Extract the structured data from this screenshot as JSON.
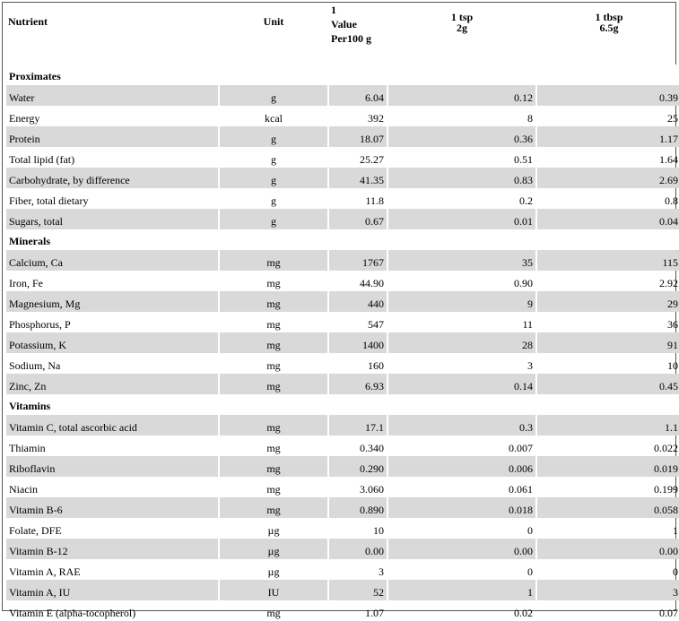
{
  "headers": {
    "nutrient": "Nutrient",
    "unit": "Unit",
    "value_line1": "1",
    "value_line2": "Value",
    "value_line3": "Per100 g",
    "tsp_line1": "1 tsp",
    "tsp_line2": "2g",
    "tbsp_line1": "1 tbsp",
    "tbsp_line2": "6.5g"
  },
  "groups": [
    {
      "title": "Proximates",
      "rows": [
        {
          "name": "Water",
          "unit": "g",
          "per100": "6.04",
          "tsp": "0.12",
          "tbsp": "0.39"
        },
        {
          "name": "Energy",
          "unit": "kcal",
          "per100": "392",
          "tsp": "8",
          "tbsp": "25"
        },
        {
          "name": "Protein",
          "unit": "g",
          "per100": "18.07",
          "tsp": "0.36",
          "tbsp": "1.17"
        },
        {
          "name": "Total lipid (fat)",
          "unit": "g",
          "per100": "25.27",
          "tsp": "0.51",
          "tbsp": "1.64"
        },
        {
          "name": "Carbohydrate, by difference",
          "unit": "g",
          "per100": "41.35",
          "tsp": "0.83",
          "tbsp": "2.69"
        },
        {
          "name": "Fiber, total dietary",
          "unit": "g",
          "per100": "11.8",
          "tsp": "0.2",
          "tbsp": "0.8"
        },
        {
          "name": "Sugars, total",
          "unit": "g",
          "per100": "0.67",
          "tsp": "0.01",
          "tbsp": "0.04"
        }
      ]
    },
    {
      "title": "Minerals",
      "rows": [
        {
          "name": "Calcium, Ca",
          "unit": "mg",
          "per100": "1767",
          "tsp": "35",
          "tbsp": "115"
        },
        {
          "name": "Iron, Fe",
          "unit": "mg",
          "per100": "44.90",
          "tsp": "0.90",
          "tbsp": "2.92"
        },
        {
          "name": "Magnesium, Mg",
          "unit": "mg",
          "per100": "440",
          "tsp": "9",
          "tbsp": "29"
        },
        {
          "name": "Phosphorus, P",
          "unit": "mg",
          "per100": "547",
          "tsp": "11",
          "tbsp": "36"
        },
        {
          "name": "Potassium, K",
          "unit": "mg",
          "per100": "1400",
          "tsp": "28",
          "tbsp": "91"
        },
        {
          "name": "Sodium, Na",
          "unit": "mg",
          "per100": "160",
          "tsp": "3",
          "tbsp": "10"
        },
        {
          "name": "Zinc, Zn",
          "unit": "mg",
          "per100": "6.93",
          "tsp": "0.14",
          "tbsp": "0.45"
        }
      ]
    },
    {
      "title": "Vitamins",
      "rows": [
        {
          "name": "Vitamin C, total ascorbic acid",
          "unit": "mg",
          "per100": "17.1",
          "tsp": "0.3",
          "tbsp": "1.1"
        },
        {
          "name": "Thiamin",
          "unit": "mg",
          "per100": "0.340",
          "tsp": "0.007",
          "tbsp": "0.022"
        },
        {
          "name": "Riboflavin",
          "unit": "mg",
          "per100": "0.290",
          "tsp": "0.006",
          "tbsp": "0.019"
        },
        {
          "name": "Niacin",
          "unit": "mg",
          "per100": "3.060",
          "tsp": "0.061",
          "tbsp": "0.199"
        },
        {
          "name": "Vitamin B-6",
          "unit": "mg",
          "per100": "0.890",
          "tsp": "0.018",
          "tbsp": "0.058"
        },
        {
          "name": "Folate, DFE",
          "unit": "µg",
          "per100": "10",
          "tsp": "0",
          "tbsp": "1"
        },
        {
          "name": "Vitamin B-12",
          "unit": "µg",
          "per100": "0.00",
          "tsp": "0.00",
          "tbsp": "0.00"
        },
        {
          "name": "Vitamin A, RAE",
          "unit": "µg",
          "per100": "3",
          "tsp": "0",
          "tbsp": "0"
        },
        {
          "name": "Vitamin A, IU",
          "unit": "IU",
          "per100": "52",
          "tsp": "1",
          "tbsp": "3"
        },
        {
          "name": "Vitamin E (alpha-tocopherol)",
          "unit": "mg",
          "per100": "1.07",
          "tsp": "0.02",
          "tbsp": "0.07"
        }
      ]
    }
  ],
  "colors": {
    "row_shade": "#d9d9d9",
    "border": "#555555"
  }
}
